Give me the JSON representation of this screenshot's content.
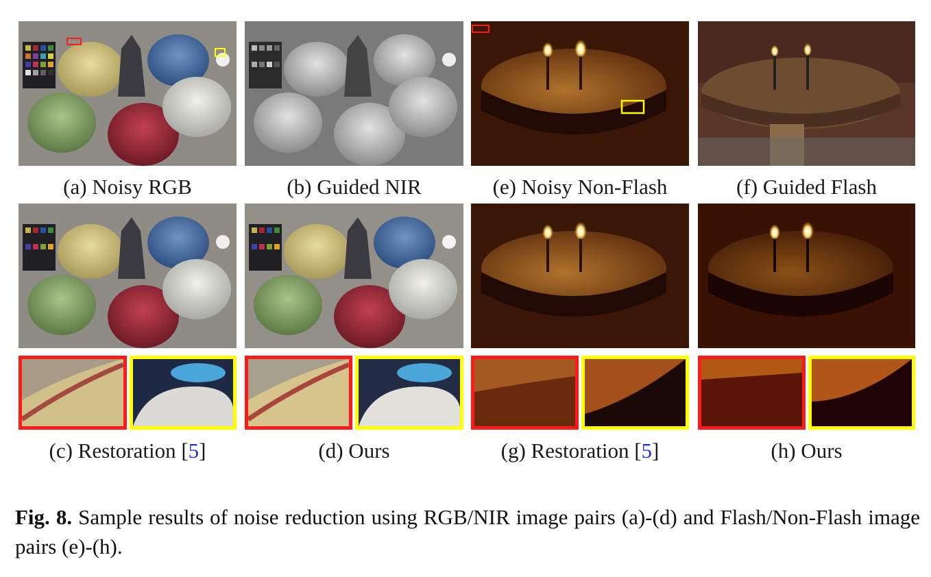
{
  "captions": {
    "a": "(a) Noisy RGB",
    "b": "(b) Guided NIR",
    "e": "(e) Noisy Non-Flash",
    "f": "(f) Guided Flash",
    "c": "(c) Restoration [",
    "c_ref": "5",
    "c_end": "]",
    "d": "(d) Ours",
    "g": "(g) Restoration [",
    "g_ref": "5",
    "g_end": "]",
    "h": "(h) Ours"
  },
  "figure_caption": {
    "label": "Fig. 8.",
    "text": " Sample results of noise reduction using RGB/NIR image pairs (a)-(d) and Flash/Non-Flash image pairs (e)-(h)."
  },
  "colors": {
    "highlight_red": "#ff1a1a",
    "highlight_yellow": "#ffff00",
    "citation_blue": "#1a33d6"
  }
}
